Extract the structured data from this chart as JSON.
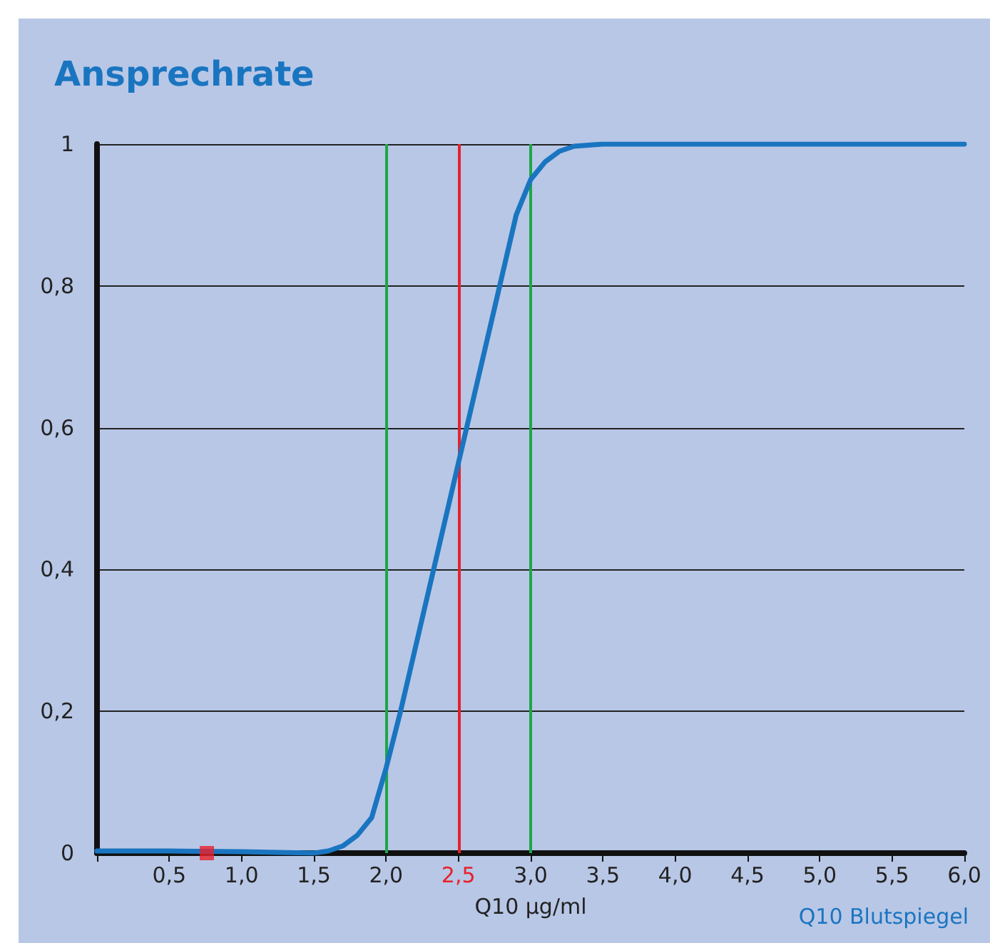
{
  "chart_data": {
    "type": "line",
    "title": "Ansprechrate",
    "xlabel": "Q10 µg/ml",
    "xlim": [
      0,
      6
    ],
    "ylim": [
      0,
      1
    ],
    "xticks": [
      {
        "value": 0,
        "label": null
      },
      {
        "value": 0.5,
        "label": "0,5"
      },
      {
        "value": 1,
        "label": "1,0"
      },
      {
        "value": 1.5,
        "label": "1,5"
      },
      {
        "value": 2,
        "label": "2,0"
      },
      {
        "value": 2.5,
        "label": "2,5"
      },
      {
        "value": 3,
        "label": "3,0"
      },
      {
        "value": 3.5,
        "label": "3,5"
      },
      {
        "value": 4,
        "label": "4,0"
      },
      {
        "value": 4.5,
        "label": "4,5"
      },
      {
        "value": 5,
        "label": "5,0"
      },
      {
        "value": 5.5,
        "label": "5,5"
      },
      {
        "value": 6,
        "label": "6,0"
      }
    ],
    "yticks": [
      {
        "value": 0,
        "label": "0"
      },
      {
        "value": 0.2,
        "label": "0,2"
      },
      {
        "value": 0.4,
        "label": "0,4"
      },
      {
        "value": 0.6,
        "label": "0,6"
      },
      {
        "value": 0.8,
        "label": "0,8"
      },
      1
    ],
    "grid": "y",
    "legend": "bottom right",
    "marker": "none",
    "line_style": "solid",
    "series": [
      {
        "name": "Q10 Blutspiegel",
        "color": "#1a75c0",
        "x": [
          0,
          0.5,
          1,
          1.5,
          1.6,
          1.7,
          1.8,
          1.9,
          2,
          2.1,
          2.5,
          2.9,
          3,
          3.1,
          3.2,
          3.3,
          3.5,
          6
        ],
        "values": [
          0.003,
          0.003,
          0.002,
          0,
          0.003,
          0.01,
          0.025,
          0.05,
          0.12,
          0.2,
          0.55,
          0.9,
          0.95,
          0.975,
          0.99,
          0.997,
          1,
          1
        ]
      },
      {
        "type": "scatter",
        "marker": "square",
        "color": "#e8202a",
        "x": [
          0.76
        ],
        "values": [
          0
        ]
      }
    ],
    "ref_lines": [
      {
        "axis": "x",
        "value": 2,
        "color": "#1fa54a",
        "line_style": "solid"
      },
      {
        "axis": "x",
        "value": 2.5,
        "color": "#e8202a",
        "line_style": "solid"
      },
      {
        "axis": "x",
        "value": 3,
        "color": "#1fa54a",
        "line_style": "solid"
      }
    ]
  }
}
